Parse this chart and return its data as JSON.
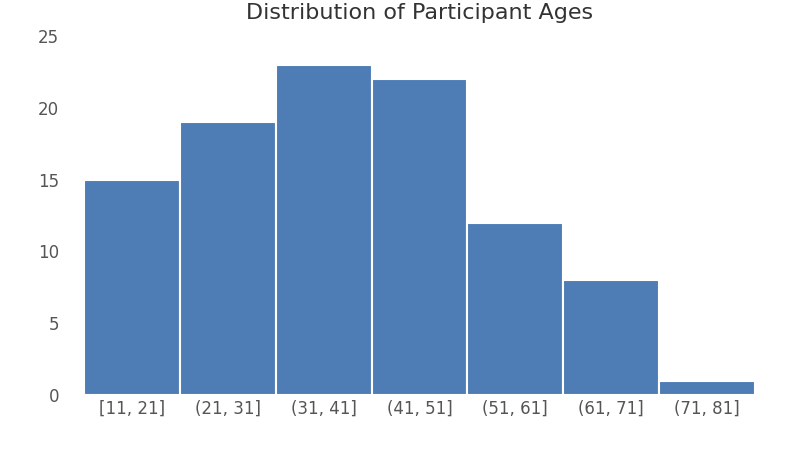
{
  "title": "Distribution of Participant Ages",
  "categories": [
    "[11, 21]",
    "(21, 31]",
    "(31, 41]",
    "(41, 51]",
    "(51, 61]",
    "(61, 71]",
    "(71, 81]"
  ],
  "values": [
    15,
    19,
    23,
    22,
    12,
    8,
    1
  ],
  "bar_color": "#4e7db5",
  "ylim": [
    0,
    25
  ],
  "yticks": [
    0,
    5,
    10,
    15,
    20,
    25
  ],
  "title_fontsize": 16,
  "tick_fontsize": 12,
  "background_color": "#ffffff",
  "bar_edge_color": "#ffffff",
  "bar_linewidth": 1.5
}
